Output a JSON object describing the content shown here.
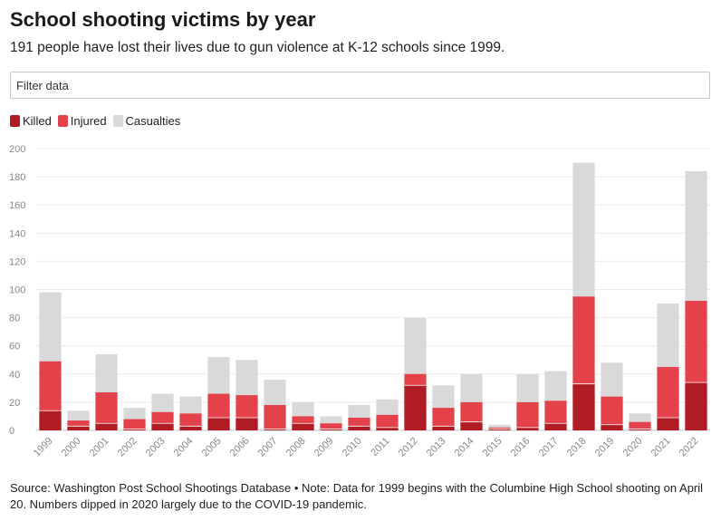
{
  "title": "School shooting victims by year",
  "subtitle": "191 people have lost their lives due to gun violence at K-12 schools since 1999.",
  "filter": {
    "placeholder": "Filter data"
  },
  "source_note": "Source: Washington Post School Shootings Database • Note: Data for 1999 begins with the Columbine High School shooting on April 20. Numbers dipped in 2020 largely due to the COVID-19 pandemic.",
  "colors": {
    "killed": "#b01c24",
    "injured": "#e3424a",
    "casualties": "#d9d9d9"
  },
  "chart_data": {
    "type": "bar",
    "stacked": true,
    "title": "School shooting victims by year",
    "xlabel": "",
    "ylabel": "",
    "ylim": [
      0,
      200
    ],
    "yticks": [
      0,
      20,
      40,
      60,
      80,
      100,
      120,
      140,
      160,
      180,
      200
    ],
    "grid": true,
    "legend_position": "top-left",
    "categories": [
      "1999",
      "2000",
      "2001",
      "2002",
      "2003",
      "2004",
      "2005",
      "2006",
      "2007",
      "2008",
      "2009",
      "2010",
      "2011",
      "2012",
      "2013",
      "2014",
      "2015",
      "2016",
      "2017",
      "2018",
      "2019",
      "2020",
      "2021",
      "2022"
    ],
    "series": [
      {
        "name": "Killed",
        "values": [
          14,
          3,
          5,
          1,
          5,
          3,
          9,
          9,
          1,
          5,
          1,
          3,
          2,
          32,
          3,
          6,
          1,
          2,
          5,
          33,
          4,
          1,
          9,
          34
        ]
      },
      {
        "name": "Injured",
        "values": [
          35,
          4,
          22,
          7,
          8,
          9,
          17,
          16,
          17,
          5,
          4,
          6,
          9,
          8,
          13,
          14,
          1,
          18,
          16,
          62,
          20,
          5,
          36,
          58
        ]
      },
      {
        "name": "Casualties",
        "values": [
          49,
          7,
          27,
          8,
          13,
          12,
          26,
          25,
          18,
          10,
          5,
          9,
          11,
          40,
          16,
          20,
          2,
          20,
          21,
          95,
          24,
          6,
          45,
          92
        ]
      }
    ]
  }
}
